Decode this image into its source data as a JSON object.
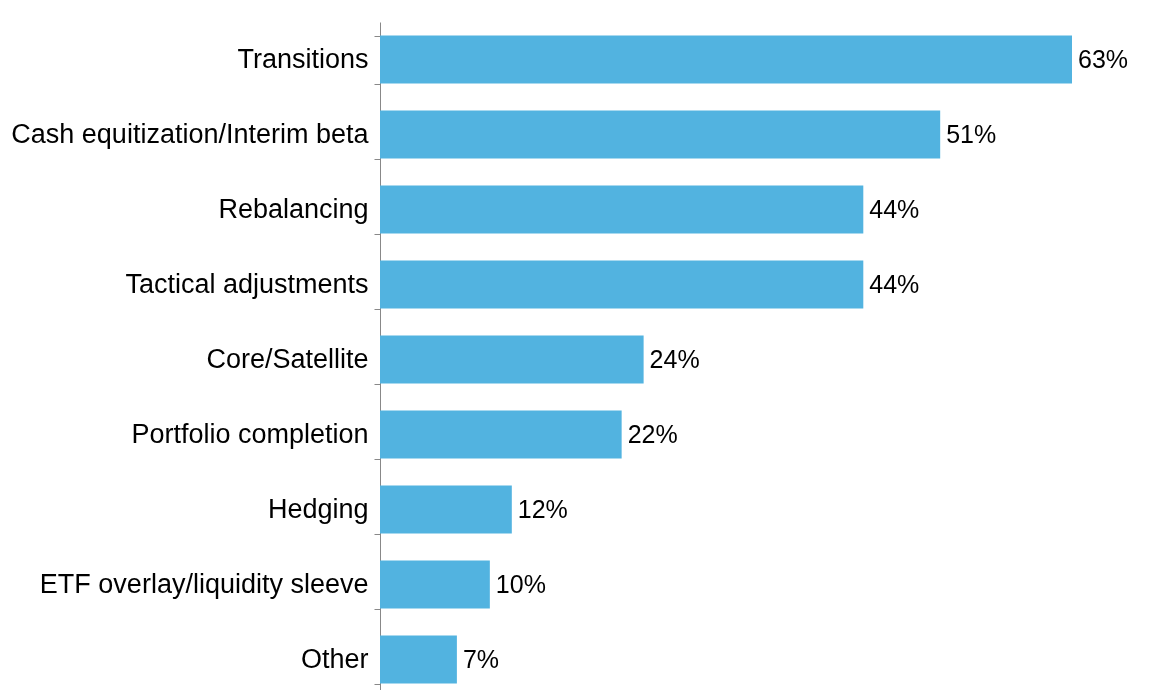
{
  "chart_data": {
    "type": "bar",
    "orientation": "horizontal",
    "categories": [
      "Transitions",
      "Cash equitization/Interim beta",
      "Rebalancing",
      "Tactical adjustments",
      "Core/Satellite",
      "Portfolio completion",
      "Hedging",
      "ETF overlay/liquidity sleeve",
      "Other"
    ],
    "values": [
      63,
      51,
      44,
      44,
      24,
      22,
      12,
      10,
      7
    ],
    "value_labels": [
      "63%",
      "51%",
      "44%",
      "44%",
      "24%",
      "22%",
      "12%",
      "10%",
      "7%"
    ],
    "color": "#52b3e0"
  }
}
